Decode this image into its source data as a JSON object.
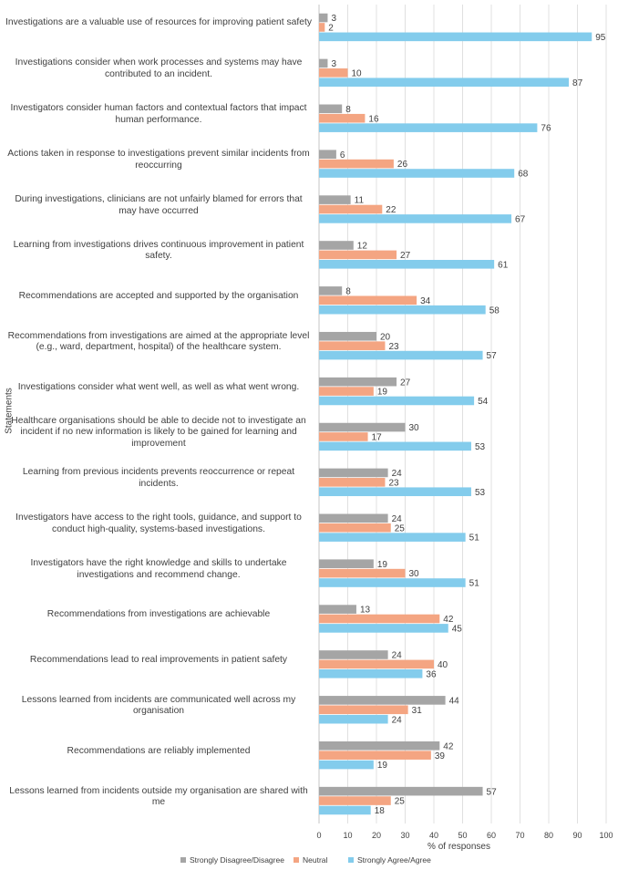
{
  "chart_data": {
    "type": "bar",
    "orientation": "horizontal",
    "xlabel": "% of responses",
    "ylabel": "Statements",
    "xlim": [
      0,
      100
    ],
    "xticks": [
      0,
      10,
      20,
      30,
      40,
      50,
      60,
      70,
      80,
      90,
      100
    ],
    "grid": "vertical",
    "legend_position": "bottom",
    "categories": [
      "Investigations are a valuable use of resources for improving patient safety",
      "Investigations consider when work processes and systems may have contributed to an incident.",
      "Investigators consider human factors and contextual factors that impact human performance.",
      "Actions taken in response to investigations prevent similar incidents from reoccurring",
      "During investigations, clinicians are not unfairly blamed for errors that may have occurred",
      "Learning from investigations drives continuous improvement in patient safety.",
      "Recommendations are accepted and supported by the organisation",
      "Recommendations from investigations are aimed at the appropriate level (e.g., ward, department, hospital) of the healthcare system.",
      "Investigations consider what went well, as well as what went wrong.",
      "Healthcare organisations should be able to decide not to investigate an incident if no new information is likely to be gained for learning and improvement",
      "Learning from previous incidents prevents reoccurrence or repeat incidents.",
      "Investigators have access to the right tools, guidance, and support to conduct high-quality, systems-based investigations.",
      "Investigators have the right knowledge and skills to undertake investigations and recommend change.",
      "Recommendations from investigations are achievable",
      "Recommendations lead to real improvements in patient safety",
      "Lessons learned from incidents are communicated well across my organisation",
      "Recommendations are reliably implemented",
      "Lessons learned from incidents outside my organisation are shared with me"
    ],
    "series": [
      {
        "name": "Strongly Disagree/Disagree",
        "color": "#a5a5a5",
        "values": [
          3,
          3,
          8,
          6,
          11,
          12,
          8,
          20,
          27,
          30,
          24,
          24,
          19,
          13,
          24,
          44,
          42,
          57
        ]
      },
      {
        "name": "Neutral",
        "color": "#f4a582",
        "values": [
          2,
          10,
          16,
          26,
          22,
          27,
          34,
          23,
          19,
          17,
          23,
          25,
          30,
          42,
          40,
          31,
          39,
          25
        ]
      },
      {
        "name": "Strongly Agree/Agree",
        "color": "#83ccec",
        "values": [
          95,
          87,
          76,
          68,
          67,
          61,
          58,
          57,
          54,
          53,
          53,
          51,
          51,
          45,
          36,
          24,
          19,
          18
        ]
      }
    ]
  }
}
